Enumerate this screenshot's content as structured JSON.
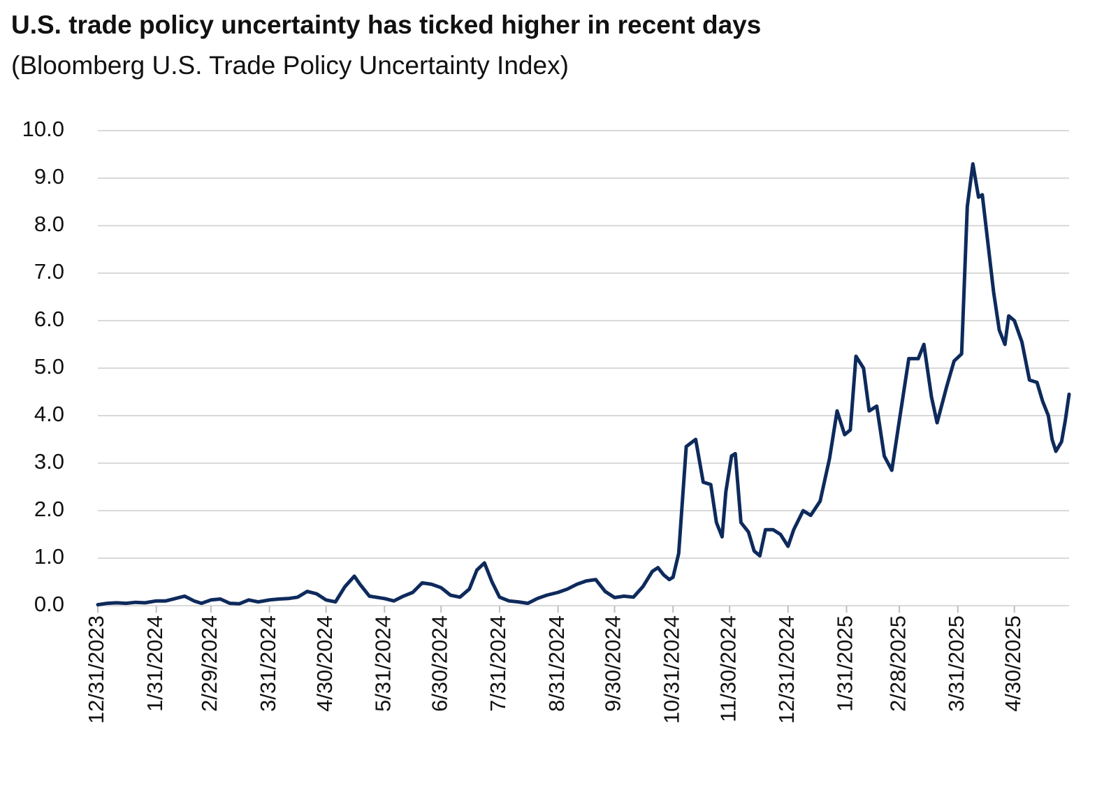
{
  "chart_data": {
    "type": "line",
    "title": "U.S. trade policy uncertainty has ticked higher in recent days",
    "subtitle": "(Bloomberg U.S. Trade Policy Uncertainty Index)",
    "color": "#0e2a5c",
    "grid": true,
    "x": [
      "12/31/2023",
      "1/5/2024",
      "1/10/2024",
      "1/15/2024",
      "1/20/2024",
      "1/25/2024",
      "1/31/2024",
      "2/5/2024",
      "2/10/2024",
      "2/15/2024",
      "2/20/2024",
      "2/24/2024",
      "2/29/2024",
      "3/5/2024",
      "3/10/2024",
      "3/15/2024",
      "3/20/2024",
      "3/25/2024",
      "3/31/2024",
      "4/5/2024",
      "4/10/2024",
      "4/15/2024",
      "4/20/2024",
      "4/25/2024",
      "4/30/2024",
      "5/5/2024",
      "5/10/2024",
      "5/15/2024",
      "5/18/2024",
      "5/23/2024",
      "5/31/2024",
      "6/5/2024",
      "6/10/2024",
      "6/15/2024",
      "6/20/2024",
      "6/25/2024",
      "6/30/2024",
      "7/5/2024",
      "7/10/2024",
      "7/15/2024",
      "7/19/2024",
      "7/23/2024",
      "7/27/2024",
      "7/31/2024",
      "8/5/2024",
      "8/10/2024",
      "8/15/2024",
      "8/20/2024",
      "8/25/2024",
      "8/31/2024",
      "9/5/2024",
      "9/10/2024",
      "9/15/2024",
      "9/20/2024",
      "9/25/2024",
      "9/30/2024",
      "10/5/2024",
      "10/10/2024",
      "10/15/2024",
      "10/20/2024",
      "10/23/2024",
      "10/26/2024",
      "10/29/2024",
      "10/31/2024",
      "11/3/2024",
      "11/7/2024",
      "11/12/2024",
      "11/16/2024",
      "11/20/2024",
      "11/23/2024",
      "11/26/2024",
      "11/28/2024",
      "12/1/2024",
      "12/3/2024",
      "12/6/2024",
      "12/10/2024",
      "12/13/2024",
      "12/16/2024",
      "12/19/2024",
      "12/23/2024",
      "12/27/2024",
      "12/31/2024",
      "1/3/2025",
      "1/8/2025",
      "1/12/2025",
      "1/17/2025",
      "1/22/2025",
      "1/26/2025",
      "1/30/2025",
      "2/2/2025",
      "2/5/2025",
      "2/9/2025",
      "2/12/2025",
      "2/16/2025",
      "2/20/2025",
      "2/24/2025",
      "2/28/2025",
      "3/5/2025",
      "3/10/2025",
      "3/13/2025",
      "3/17/2025",
      "3/20/2025",
      "3/25/2025",
      "3/29/2025",
      "4/2/2025",
      "4/5/2025",
      "4/8/2025",
      "4/11/2025",
      "4/13/2025",
      "4/19/2025",
      "4/22/2025",
      "4/25/2025",
      "4/27/2025",
      "4/30/2025",
      "5/4/2025",
      "5/8/2025",
      "5/12/2025",
      "5/15/2025",
      "5/18/2025",
      "5/20/2025",
      "5/22/2025",
      "5/25/2025",
      "5/27/2025",
      "5/29/2025"
    ],
    "values": [
      0.02,
      0.05,
      0.06,
      0.05,
      0.07,
      0.06,
      0.1,
      0.1,
      0.15,
      0.2,
      0.1,
      0.05,
      0.12,
      0.14,
      0.05,
      0.04,
      0.12,
      0.08,
      0.12,
      0.14,
      0.15,
      0.18,
      0.3,
      0.25,
      0.12,
      0.08,
      0.4,
      0.62,
      0.45,
      0.2,
      0.15,
      0.1,
      0.2,
      0.28,
      0.48,
      0.45,
      0.38,
      0.22,
      0.18,
      0.35,
      0.75,
      0.9,
      0.5,
      0.18,
      0.1,
      0.08,
      0.05,
      0.15,
      0.22,
      0.28,
      0.35,
      0.45,
      0.52,
      0.55,
      0.3,
      0.17,
      0.2,
      0.18,
      0.4,
      0.72,
      0.8,
      0.65,
      0.55,
      0.6,
      1.1,
      3.35,
      3.5,
      2.6,
      2.55,
      1.75,
      1.45,
      2.4,
      3.15,
      3.2,
      1.75,
      1.55,
      1.15,
      1.05,
      1.6,
      1.6,
      1.5,
      1.25,
      1.6,
      2.0,
      1.9,
      2.2,
      3.1,
      4.1,
      3.6,
      3.7,
      5.25,
      5.0,
      4.1,
      4.2,
      3.15,
      2.85,
      3.9,
      5.2,
      5.2,
      5.5,
      4.4,
      3.85,
      4.6,
      5.15,
      5.3,
      8.4,
      9.3,
      8.6,
      8.65,
      6.6,
      5.8,
      5.5,
      6.1,
      6.0,
      5.55,
      4.75,
      4.7,
      4.3,
      4.0,
      3.5,
      3.25,
      3.45,
      3.9,
      4.45
    ],
    "xlim": [
      "12/31/2023",
      "5/29/2025"
    ],
    "xticks": [
      "12/31/2023",
      "1/31/2024",
      "2/29/2024",
      "3/31/2024",
      "4/30/2024",
      "5/31/2024",
      "6/30/2024",
      "7/31/2024",
      "8/31/2024",
      "9/30/2024",
      "10/31/2024",
      "11/30/2024",
      "12/31/2024",
      "1/31/2025",
      "2/28/2025",
      "3/31/2025",
      "4/30/2025"
    ],
    "ylim": [
      0,
      10
    ],
    "yticks": [
      {
        "value": 0,
        "label": "0.0"
      },
      {
        "value": 1,
        "label": "1.0"
      },
      {
        "value": 2,
        "label": "2.0"
      },
      {
        "value": 3,
        "label": "3.0"
      },
      {
        "value": 4,
        "label": "4.0"
      },
      {
        "value": 5,
        "label": "5.0"
      },
      {
        "value": 6,
        "label": "6.0"
      },
      {
        "value": 7,
        "label": "7.0"
      },
      {
        "value": 8,
        "label": "8.0"
      },
      {
        "value": 9,
        "label": "9.0"
      },
      {
        "value": 10,
        "label": "10.0"
      }
    ]
  }
}
